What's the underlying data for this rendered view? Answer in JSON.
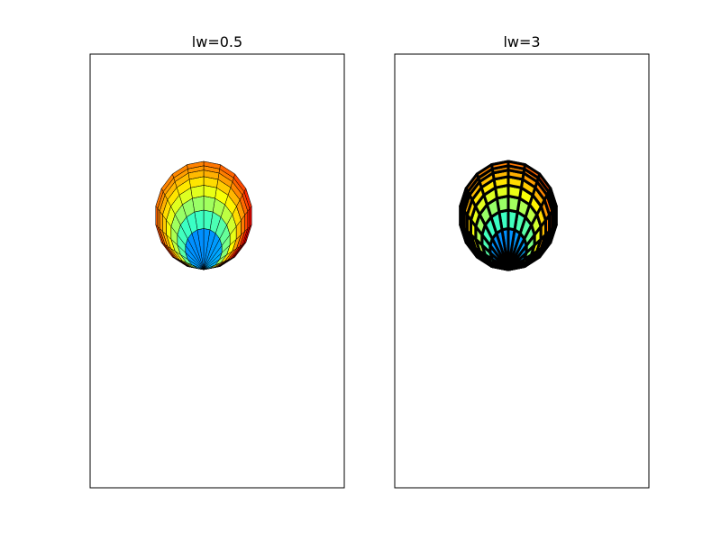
{
  "chart_data": [
    {
      "type": "pcolormesh",
      "title": "lw=0.5",
      "line_width": 0.5,
      "edgecolor": "#000000",
      "colormap": "jet",
      "shape": "two tangent discs (figure-eight polar mesh)",
      "mesh": {
        "radial_segments": 8,
        "angular_segments": 36
      },
      "value_range": [
        0,
        1
      ],
      "axes_ticks": false
    },
    {
      "type": "pcolormesh",
      "title": "lw=3",
      "line_width": 3,
      "edgecolor": "#000000",
      "colormap": "jet",
      "shape": "two tangent discs (figure-eight polar mesh)",
      "mesh": {
        "radial_segments": 8,
        "angular_segments": 36
      },
      "value_range": [
        0,
        1
      ],
      "axes_ticks": false
    }
  ]
}
